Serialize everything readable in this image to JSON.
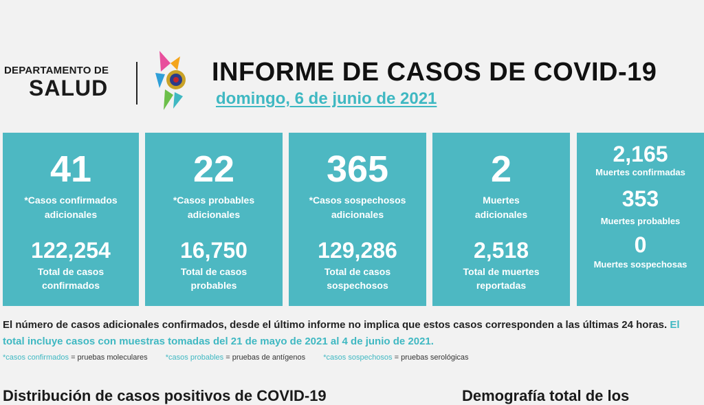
{
  "header": {
    "dept_top": "DEPARTAMENTO DE",
    "dept_bottom": "SALUD",
    "title": "INFORME DE CASOS DE COVID-19",
    "date": "domingo, 6 de junio de 2021"
  },
  "cards": [
    {
      "value": "41",
      "label": [
        "*Casos confirmados",
        "adicionales"
      ],
      "total": "122,254",
      "total_label": [
        "Total de casos",
        "confirmados"
      ]
    },
    {
      "value": "22",
      "label": [
        "*Casos probables",
        "adicionales"
      ],
      "total": "16,750",
      "total_label": [
        "Total de casos",
        "probables"
      ]
    },
    {
      "value": "365",
      "label": [
        "*Casos sospechosos",
        "adicionales"
      ],
      "total": "129,286",
      "total_label": [
        "Total de casos",
        "sospechosos"
      ]
    },
    {
      "value": "2",
      "label": [
        "Muertes",
        "adicionales"
      ],
      "total": "2,518",
      "total_label": [
        "Total de muertes",
        "reportadas"
      ]
    }
  ],
  "deaths": {
    "confirmed": "2,165",
    "confirmed_label": "Muertes confirmadas",
    "probable": "353",
    "probable_label": "Muertes probables",
    "suspected": "0",
    "suspected_label": "Muertes sospechosas"
  },
  "note": {
    "part1": "El número de casos adicionales confirmados, desde el último informe no implica que estos casos corresponden a las últimas 24 horas.",
    "part2": "El total incluye casos con muestras tomadas del 21 de mayo de 2021 al 4 de junio de 2021."
  },
  "legend": [
    {
      "key": "*casos confirmados",
      "value": "= pruebas moleculares"
    },
    {
      "key": "*casos probables",
      "value": "= pruebas de antígenos"
    },
    {
      "key": "*casos sospechosos",
      "value": "= pruebas serológicas"
    }
  ],
  "footer": {
    "left": "Distribución de casos positivos de COVID-19",
    "right": "Demografía total de los"
  },
  "colors": {
    "accent": "#3fb8c2",
    "card": "#4db8c2"
  }
}
